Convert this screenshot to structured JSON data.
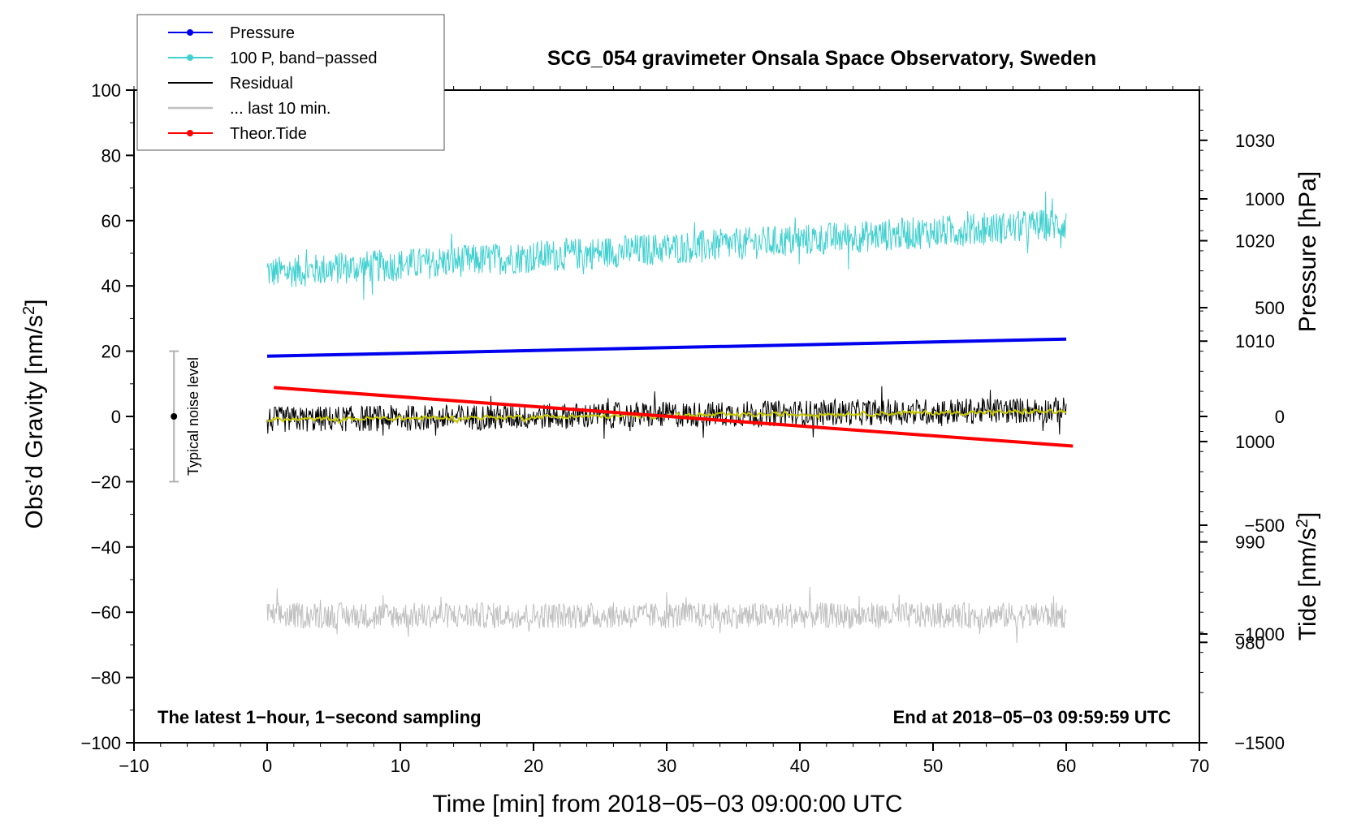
{
  "chart_data": {
    "type": "line",
    "title": "SCG_054 gravimeter Onsala Space Observatory, Sweden",
    "xlabel": "Time [min] from 2018−05−03 09:00:00 UTC",
    "ylabel_left": "Obs’d Gravity [nm/s²]",
    "ylabel_right_pressure": "Pressure [hPa]",
    "ylabel_right_tide": "Tide [nm/s²]",
    "xlim": [
      -10,
      70
    ],
    "ylim": [
      -100,
      100
    ],
    "pressure_lim": [
      970,
      1035
    ],
    "tide_lim": [
      -1500,
      1500
    ],
    "x_ticks": [
      "−10",
      "0",
      "10",
      "20",
      "30",
      "40",
      "50",
      "60",
      "70"
    ],
    "y_ticks": [
      "100",
      "80",
      "60",
      "40",
      "20",
      "0",
      "−20",
      "−40",
      "−60",
      "−80",
      "−100"
    ],
    "pressure_ticks": [
      "1030",
      "1020",
      "1010",
      "1000",
      "990",
      "980"
    ],
    "tide_ticks": [
      "1000",
      "500",
      "0",
      "−500",
      "−1000",
      "−1500"
    ],
    "grid": false,
    "legend_position": "top-left",
    "legend": [
      {
        "label": "Pressure",
        "color": "#0000ee",
        "marker": true
      },
      {
        "label": "100 P, band−passed",
        "color": "#40d0d0",
        "marker": true
      },
      {
        "label": "Residual",
        "color": "#000000",
        "marker": false
      },
      {
        "label": "... last 10 min.",
        "color": "#c0c0c0",
        "marker": false
      },
      {
        "label": "Theor.Tide",
        "color": "#ff0000",
        "marker": true
      }
    ],
    "series": [
      {
        "name": "Pressure",
        "axis": "pressure",
        "color": "#0000ee",
        "x": [
          0,
          60
        ],
        "y": [
          1008.5,
          1010.2
        ]
      },
      {
        "name": "100 P, band−passed",
        "axis": "gravity",
        "color": "#40d0d0",
        "x": [
          0,
          60
        ],
        "y": [
          44,
          59
        ],
        "noise_amplitude": 5
      },
      {
        "name": "Residual",
        "axis": "gravity",
        "color": "#000000",
        "x": [
          0,
          60
        ],
        "y": [
          -1,
          2
        ],
        "noise_amplitude": 4
      },
      {
        "name": "smoothed residual",
        "axis": "gravity",
        "color": "#c8c800",
        "x": [
          0,
          60
        ],
        "y": [
          -1,
          1.5
        ]
      },
      {
        "name": "... last 10 min.",
        "axis": "gravity",
        "color": "#c0c0c0",
        "x": [
          0,
          60
        ],
        "y": [
          -61,
          -61
        ],
        "noise_amplitude": 4
      },
      {
        "name": "Theor.Tide",
        "axis": "tide",
        "color": "#ff0000",
        "x": [
          0.5,
          60.5
        ],
        "y": [
          133,
          -136
        ]
      }
    ],
    "noise_bar": {
      "label": "Typical noise level",
      "x": -7,
      "y": 0,
      "low": -20,
      "high": 20
    },
    "annotations": {
      "left": "The latest 1−hour, 1−second sampling",
      "right": "End at 2018−05−03 09:59:59 UTC"
    }
  }
}
